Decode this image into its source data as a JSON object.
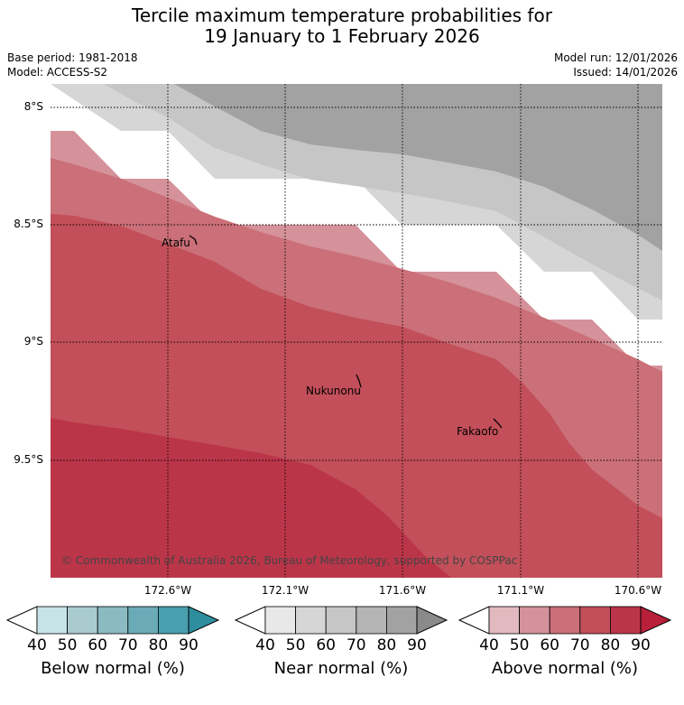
{
  "header": {
    "title_line1": "Tercile maximum temperature probabilities for",
    "title_line2": "19 January to 1 February 2026",
    "base_period": "Base period: 1981-2018",
    "model": "Model: ACCESS-S2",
    "model_run": "Model run: 12/01/2026",
    "issued": "Issued: 14/01/2026"
  },
  "map": {
    "lat_labels": [
      "8°S",
      "8.5°S",
      "9°S",
      "9.5°S"
    ],
    "lon_labels": [
      "172.6°W",
      "172.1°W",
      "171.6°W",
      "171.1°W",
      "170.6°W"
    ],
    "places": [
      "Atafu",
      "Nukunonu",
      "Fakaofo"
    ],
    "copyright": "© Commonwealth of Australia 2026, Bureau of Meteorology, supported by COSPPac"
  },
  "colorbars": [
    {
      "title": "Below normal (%)",
      "ticks": [
        "40",
        "50",
        "60",
        "70",
        "80",
        "90"
      ],
      "colors": [
        "#ffffff",
        "#c8e3e8",
        "#a9cbd0",
        "#8bbac3",
        "#6aabb7",
        "#489fae",
        "#2e8e9e"
      ]
    },
    {
      "title": "Near normal (%)",
      "ticks": [
        "40",
        "50",
        "60",
        "70",
        "80",
        "90"
      ],
      "colors": [
        "#ffffff",
        "#e8e8e8",
        "#d6d6d6",
        "#c6c6c6",
        "#b4b4b4",
        "#a2a2a2",
        "#8a8a8a"
      ]
    },
    {
      "title": "Above normal (%)",
      "ticks": [
        "40",
        "50",
        "60",
        "70",
        "80",
        "90"
      ],
      "colors": [
        "#ffffff",
        "#e2b9be",
        "#d5929a",
        "#cb6f78",
        "#c24f59",
        "#bb3549",
        "#b8203a"
      ]
    }
  ],
  "colors": {
    "near_90": "#a2a2a2",
    "near_80": "#c6c6c6",
    "near_70": "#d6d6d6",
    "above_50": "#d5929a",
    "above_60": "#cb6f78",
    "above_70": "#c24f59",
    "above_80": "#bb3549"
  }
}
